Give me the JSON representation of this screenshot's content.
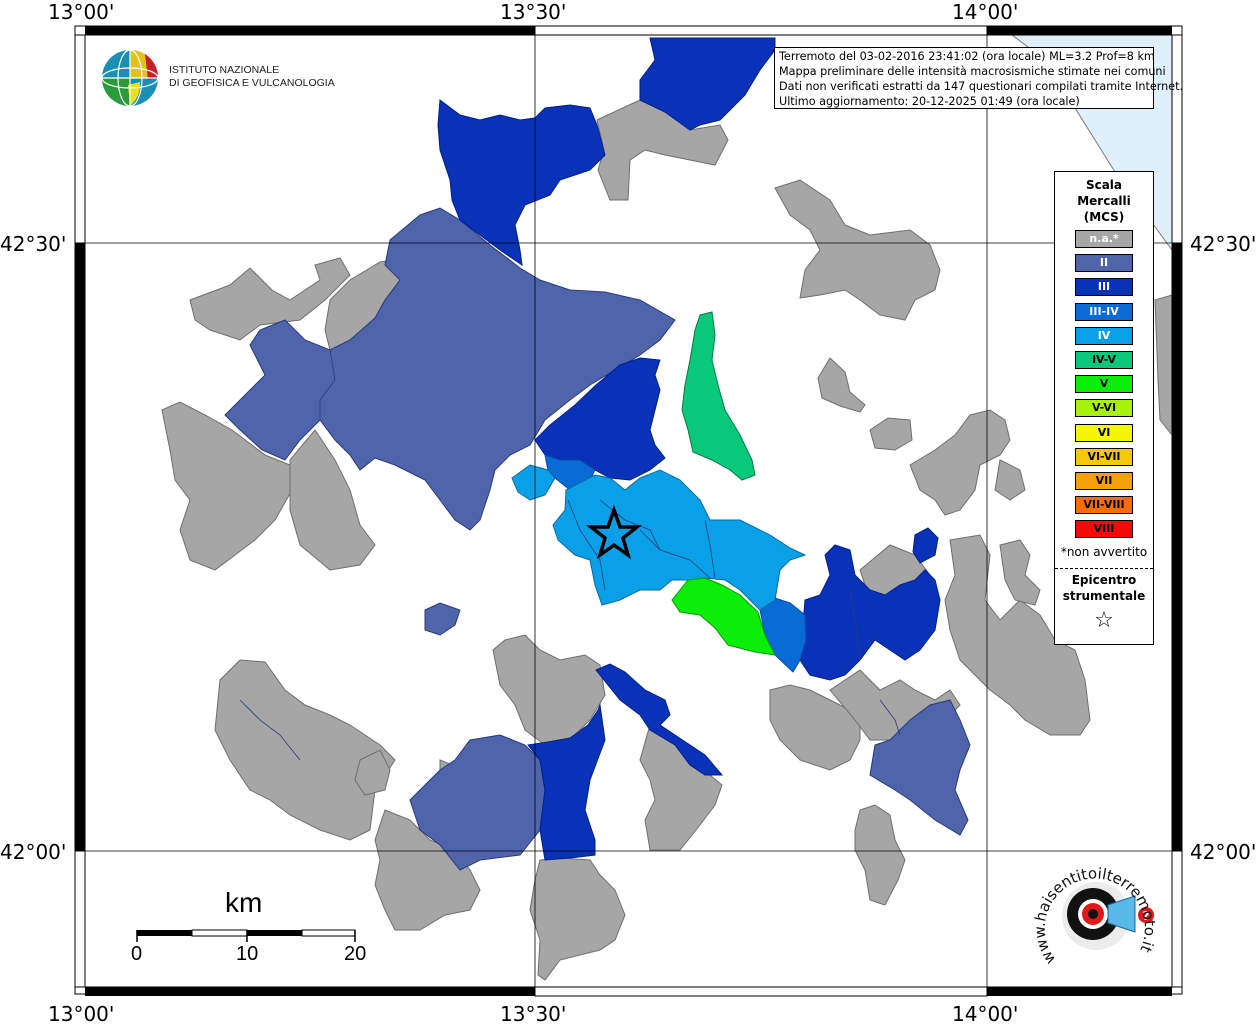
{
  "axis_ticks": {
    "top": [
      "13°00'",
      "13°30'",
      "14°00'"
    ],
    "bottom": [
      "13°00'",
      "13°30'",
      "14°00'"
    ],
    "left": [
      "42°30'",
      "42°00'"
    ],
    "right": [
      "42°30'",
      "42°00'"
    ]
  },
  "institute": {
    "line1": "ISTITUTO NAZIONALE",
    "line2": "DI GEOFISICA E VULCANOLOGIA"
  },
  "info": {
    "line1": "Terremoto del 03-02-2016 23:41:02 (ora locale) ML=3.2 Prof=8 km",
    "line2": "Mappa preliminare delle intensità macrosismiche stimate nei comuni",
    "line3": "Dati non verificati estratti da 147 questionari compilati tramite Internet.",
    "line4": "Ultimo aggiornamento: 20-12-2025 01:49 (ora locale)"
  },
  "legend": {
    "title_1": "Scala",
    "title_2": "Mercalli",
    "title_3": "(MCS)",
    "items": [
      {
        "label": "n.a.*",
        "color": "#a6a6a6",
        "text_color": "#ffffff"
      },
      {
        "label": "II",
        "color": "#4f64ab",
        "text_color": "#ffffff"
      },
      {
        "label": "III",
        "color": "#0a32b8",
        "text_color": "#ffffff"
      },
      {
        "label": "III-IV",
        "color": "#0a6ad6",
        "text_color": "#ffffff"
      },
      {
        "label": "IV",
        "color": "#0aa0e8",
        "text_color": "#ffffff"
      },
      {
        "label": "IV-V",
        "color": "#0ac87a",
        "text_color": "#000000"
      },
      {
        "label": "V",
        "color": "#0aee0a",
        "text_color": "#000000"
      },
      {
        "label": "V-VI",
        "color": "#a6f20a",
        "text_color": "#000000"
      },
      {
        "label": "VI",
        "color": "#f5f50a",
        "text_color": "#000000"
      },
      {
        "label": "VI-VII",
        "color": "#f5c80a",
        "text_color": "#000000"
      },
      {
        "label": "VII",
        "color": "#f5a00a",
        "text_color": "#000000"
      },
      {
        "label": "VII-VIII",
        "color": "#f56e0a",
        "text_color": "#000000"
      },
      {
        "label": "VIII",
        "color": "#f50a0a",
        "text_color": "#000000"
      }
    ],
    "not_felt": "*non avvertito",
    "epicenter_1": "Epicentro",
    "epicenter_2": "strumentale",
    "star": "☆"
  },
  "scalebar": {
    "unit": "km",
    "labels": [
      "0",
      "10",
      "20"
    ]
  },
  "brand": {
    "text": "www.haisentitoilterremoto.it"
  },
  "colors": {
    "na": "#a6a6a6",
    "II": "#4f64ab",
    "III": "#0a32b8",
    "III-IV": "#0a6ad6",
    "IV": "#0aa0e8",
    "IV-V": "#0ac87a",
    "V": "#0aee0a",
    "sea": "#dff0fb"
  }
}
